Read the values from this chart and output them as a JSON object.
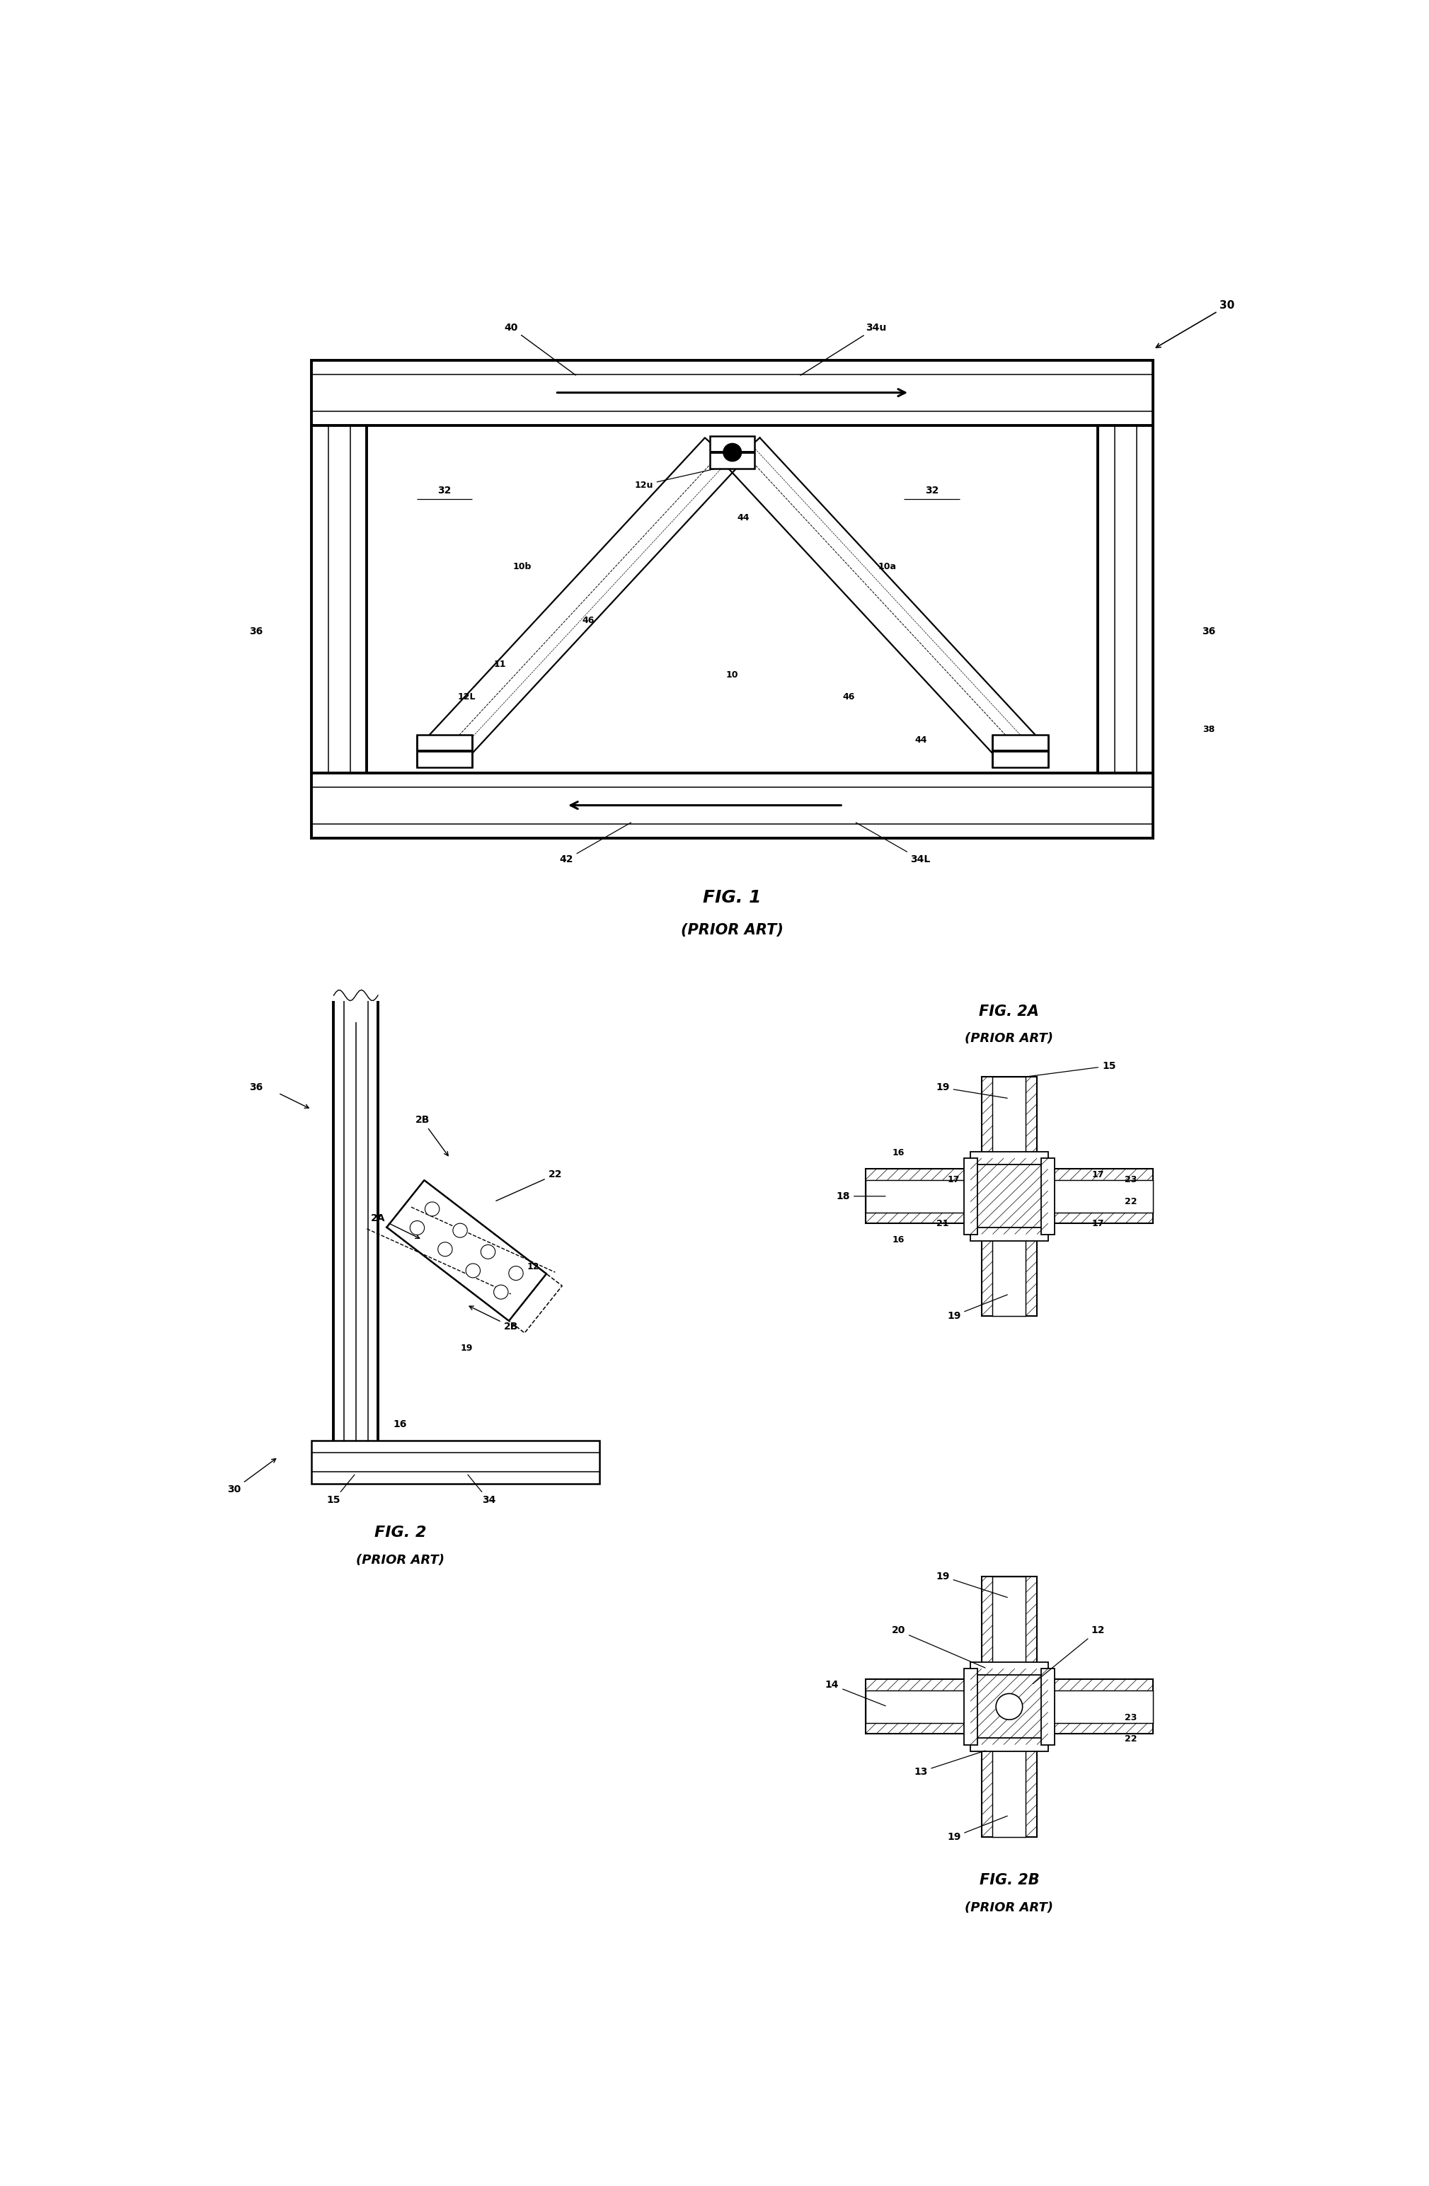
{
  "bg_color": "#ffffff",
  "line_color": "#000000",
  "fig_width": 20.19,
  "fig_height": 30.88,
  "labels": {
    "fig1_title": "FIG. 1",
    "fig1_sub": "(PRIOR ART)",
    "fig2_title": "FIG. 2",
    "fig2_sub": "(PRIOR ART)",
    "fig2a_title": "FIG. 2A",
    "fig2a_sub": "(PRIOR ART)",
    "fig2b_title": "FIG. 2B",
    "fig2b_sub": "(PRIOR ART)"
  }
}
